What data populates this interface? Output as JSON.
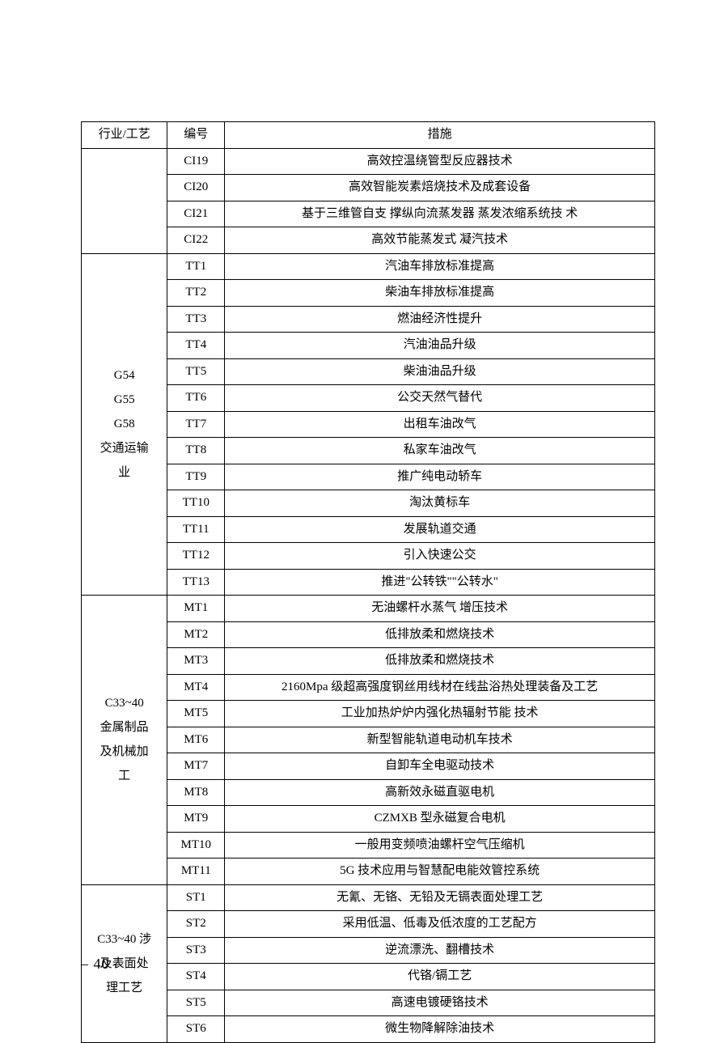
{
  "headers": {
    "industry": "行业/工艺",
    "code": "编号",
    "measure": "措施"
  },
  "groups": [
    {
      "industry": "",
      "rows": [
        {
          "code": "CI19",
          "measure": "高效控温绕管型反应器技术"
        },
        {
          "code": "CI20",
          "measure": "高效智能炭素焙烧技术及成套设备"
        },
        {
          "code": "CI21",
          "measure": "基于三维管自支 撑纵向流蒸发器 蒸发浓缩系统技  术"
        },
        {
          "code": "CI22",
          "measure": "高效节能蒸发式 凝汽技术"
        }
      ]
    },
    {
      "industry": "G54\nG55\nG58\n交通运输\n业",
      "rows": [
        {
          "code": "TT1",
          "measure": "汽油车排放标准提高"
        },
        {
          "code": "TT2",
          "measure": "柴油车排放标准提高"
        },
        {
          "code": "TT3",
          "measure": "燃油经济性提升"
        },
        {
          "code": "TT4",
          "measure": "汽油油品升级"
        },
        {
          "code": "TT5",
          "measure": "柴油油品升级"
        },
        {
          "code": "TT6",
          "measure": "公交天然气替代"
        },
        {
          "code": "TT7",
          "measure": "出租车油改气"
        },
        {
          "code": "TT8",
          "measure": "私家车油改气"
        },
        {
          "code": "TT9",
          "measure": "推广纯电动轿车"
        },
        {
          "code": "TT10",
          "measure": "淘汰黄标车"
        },
        {
          "code": "TT11",
          "measure": "发展轨道交通"
        },
        {
          "code": "TT12",
          "measure": "引入快速公交"
        },
        {
          "code": "TT13",
          "measure": "推进\"公转铁\"\"公转水\""
        }
      ]
    },
    {
      "industry": "C33~40\n金属制品\n及机械加\n工",
      "rows": [
        {
          "code": "MT1",
          "measure": "无油螺杆水蒸气 增压技术"
        },
        {
          "code": "MT2",
          "measure": "低排放柔和燃烧技术"
        },
        {
          "code": "MT3",
          "measure": "低排放柔和燃烧技术"
        },
        {
          "code": "MT4",
          "measure": "2160Mpa 级超高强度钢丝用线材在线盐浴热处理装备及工艺"
        },
        {
          "code": "MT5",
          "measure": "工业加热炉炉内强化热辐射节能 技术"
        },
        {
          "code": "MT6",
          "measure": "新型智能轨道电动机车技术"
        },
        {
          "code": "MT7",
          "measure": "自卸车全电驱动技术"
        },
        {
          "code": "MT8",
          "measure": "高新效永磁直驱电机"
        },
        {
          "code": "MT9",
          "measure": "CZMXB 型永磁复合电机"
        },
        {
          "code": "MT10",
          "measure": "一般用变频喷油螺杆空气压缩机"
        },
        {
          "code": "MT11",
          "measure": "5G 技术应用与智慧配电能效管控系统"
        }
      ]
    },
    {
      "industry": "C33~40 涉\n及表面处\n理工艺",
      "rows": [
        {
          "code": "ST1",
          "measure": "无氰、无铬、无铅及无镉表面处理工艺"
        },
        {
          "code": "ST2",
          "measure": "采用低温、低毒及低浓度的工艺配方"
        },
        {
          "code": "ST3",
          "measure": "逆流漂洗、翻槽技术"
        },
        {
          "code": "ST4",
          "measure": "代铬/镉工艺"
        },
        {
          "code": "ST5",
          "measure": "高速电镀硬铬技术"
        },
        {
          "code": "ST6",
          "measure": "微生物降解除油技术"
        }
      ]
    }
  ],
  "page_number": "– 40 –"
}
